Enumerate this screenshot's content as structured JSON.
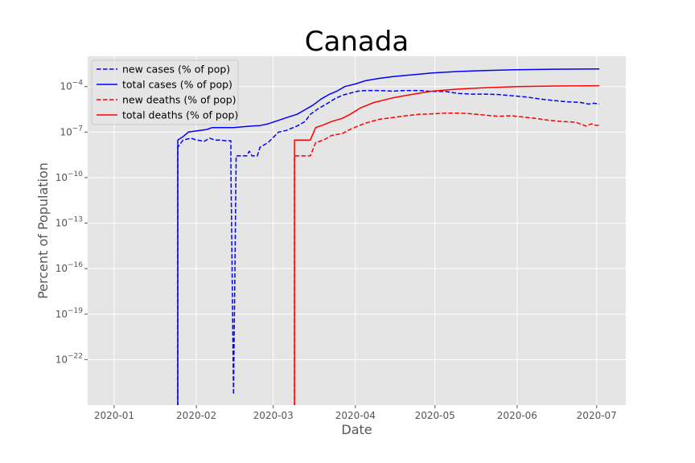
{
  "chart_data": {
    "type": "line",
    "title": "Canada",
    "xlabel": "Date",
    "ylabel": "Percent of Population",
    "yscale": "log",
    "ylim": [
      1e-25,
      0.01
    ],
    "xlim": [
      "2019-12-22",
      "2020-07-12"
    ],
    "grid": true,
    "legend_position": "top-left",
    "x_ticks": [
      "2020-01-01",
      "2020-02-01",
      "2020-03-01",
      "2020-04-01",
      "2020-05-01",
      "2020-06-01",
      "2020-07-01"
    ],
    "x_tick_labels": [
      "2020-01",
      "2020-02",
      "2020-03",
      "2020-04",
      "2020-05",
      "2020-06",
      "2020-07"
    ],
    "y_ticks": [
      1e-22,
      1e-19,
      1e-16,
      1e-13,
      1e-10,
      1e-07,
      0.0001
    ],
    "y_tick_labels": [
      {
        "base": "10",
        "exp": "−22"
      },
      {
        "base": "10",
        "exp": "−19"
      },
      {
        "base": "10",
        "exp": "−16"
      },
      {
        "base": "10",
        "exp": "−13"
      },
      {
        "base": "10",
        "exp": "−10"
      },
      {
        "base": "10",
        "exp": "−7"
      },
      {
        "base": "10",
        "exp": "−4"
      }
    ],
    "series": [
      {
        "name": "new cases (% of pop)",
        "color": "#0000ff",
        "dash": "dashed",
        "points": [
          [
            "2020-01-25",
            1e-26
          ],
          [
            "2020-01-25",
            1e-08
          ],
          [
            "2020-01-27",
            3e-08
          ],
          [
            "2020-01-30",
            4e-08
          ],
          [
            "2020-02-01",
            3e-08
          ],
          [
            "2020-02-04",
            2.5e-08
          ],
          [
            "2020-02-06",
            4e-08
          ],
          [
            "2020-02-08",
            3e-08
          ],
          [
            "2020-02-10",
            3e-08
          ],
          [
            "2020-02-12",
            2.7e-08
          ],
          [
            "2020-02-14",
            2.7e-08
          ],
          [
            "2020-02-14",
            1e-09
          ],
          [
            "2020-02-15",
            5e-25
          ],
          [
            "2020-02-16",
            2.7e-09
          ],
          [
            "2020-02-20",
            2.7e-09
          ],
          [
            "2020-02-21",
            5.5e-09
          ],
          [
            "2020-02-22",
            2.7e-09
          ],
          [
            "2020-02-24",
            2.7e-09
          ],
          [
            "2020-02-25",
            1e-08
          ],
          [
            "2020-02-28",
            2e-08
          ],
          [
            "2020-03-03",
            1e-07
          ],
          [
            "2020-03-06",
            1.3e-07
          ],
          [
            "2020-03-10",
            2.5e-07
          ],
          [
            "2020-03-13",
            5e-07
          ],
          [
            "2020-03-15",
            1.5e-06
          ],
          [
            "2020-03-18",
            3.5e-06
          ],
          [
            "2020-03-21",
            7e-06
          ],
          [
            "2020-03-24",
            1.5e-05
          ],
          [
            "2020-03-27",
            2.7e-05
          ],
          [
            "2020-03-30",
            3.7e-05
          ],
          [
            "2020-04-02",
            5e-05
          ],
          [
            "2020-04-05",
            5.5e-05
          ],
          [
            "2020-04-10",
            5.5e-05
          ],
          [
            "2020-04-15",
            5e-05
          ],
          [
            "2020-04-20",
            5.5e-05
          ],
          [
            "2020-04-25",
            5.5e-05
          ],
          [
            "2020-04-30",
            4.8e-05
          ],
          [
            "2020-05-05",
            4.8e-05
          ],
          [
            "2020-05-10",
            3.5e-05
          ],
          [
            "2020-05-15",
            3.2e-05
          ],
          [
            "2020-05-20",
            3.2e-05
          ],
          [
            "2020-05-25",
            3e-05
          ],
          [
            "2020-05-30",
            2.5e-05
          ],
          [
            "2020-06-05",
            2e-05
          ],
          [
            "2020-06-10",
            1.5e-05
          ],
          [
            "2020-06-15",
            1.2e-05
          ],
          [
            "2020-06-20",
            1e-05
          ],
          [
            "2020-06-25",
            9e-06
          ],
          [
            "2020-06-28",
            7e-06
          ],
          [
            "2020-06-30",
            8e-06
          ],
          [
            "2020-07-02",
            7e-06
          ]
        ]
      },
      {
        "name": "total cases (% of pop)",
        "color": "#0000ff",
        "dash": "solid",
        "points": [
          [
            "2020-01-25",
            1e-26
          ],
          [
            "2020-01-25",
            3e-08
          ],
          [
            "2020-01-27",
            5e-08
          ],
          [
            "2020-01-29",
            1e-07
          ],
          [
            "2020-02-01",
            1.2e-07
          ],
          [
            "2020-02-05",
            1.5e-07
          ],
          [
            "2020-02-07",
            2e-07
          ],
          [
            "2020-02-15",
            2e-07
          ],
          [
            "2020-02-18",
            2.2e-07
          ],
          [
            "2020-02-22",
            2.5e-07
          ],
          [
            "2020-02-25",
            2.7e-07
          ],
          [
            "2020-02-28",
            3.5e-07
          ],
          [
            "2020-03-03",
            6e-07
          ],
          [
            "2020-03-06",
            9e-07
          ],
          [
            "2020-03-10",
            1.5e-06
          ],
          [
            "2020-03-13",
            3e-06
          ],
          [
            "2020-03-16",
            6e-06
          ],
          [
            "2020-03-19",
            1.5e-05
          ],
          [
            "2020-03-22",
            3e-05
          ],
          [
            "2020-03-25",
            5e-05
          ],
          [
            "2020-03-28",
            0.0001
          ],
          [
            "2020-04-01",
            0.00015
          ],
          [
            "2020-04-05",
            0.00025
          ],
          [
            "2020-04-10",
            0.00035
          ],
          [
            "2020-04-15",
            0.00045
          ],
          [
            "2020-04-20",
            0.00055
          ],
          [
            "2020-04-30",
            0.0008
          ],
          [
            "2020-05-10",
            0.001
          ],
          [
            "2020-05-20",
            0.00115
          ],
          [
            "2020-06-01",
            0.0013
          ],
          [
            "2020-06-15",
            0.0014
          ],
          [
            "2020-07-02",
            0.00145
          ]
        ]
      },
      {
        "name": "new deaths (% of pop)",
        "color": "#ff0000",
        "dash": "dashed",
        "points": [
          [
            "2020-03-09",
            1e-26
          ],
          [
            "2020-03-09",
            2.7e-09
          ],
          [
            "2020-03-15",
            2.7e-09
          ],
          [
            "2020-03-17",
            2e-08
          ],
          [
            "2020-03-20",
            3e-08
          ],
          [
            "2020-03-23",
            6e-08
          ],
          [
            "2020-03-27",
            8e-08
          ],
          [
            "2020-03-30",
            1.5e-07
          ],
          [
            "2020-04-02",
            2.5e-07
          ],
          [
            "2020-04-05",
            4e-07
          ],
          [
            "2020-04-10",
            7e-07
          ],
          [
            "2020-04-15",
            9e-07
          ],
          [
            "2020-04-20",
            1.2e-06
          ],
          [
            "2020-04-25",
            1.5e-06
          ],
          [
            "2020-04-30",
            1.6e-06
          ],
          [
            "2020-05-05",
            1.8e-06
          ],
          [
            "2020-05-10",
            1.8e-06
          ],
          [
            "2020-05-15",
            1.6e-06
          ],
          [
            "2020-05-20",
            1.3e-06
          ],
          [
            "2020-05-25",
            1.1e-06
          ],
          [
            "2020-05-30",
            1.2e-06
          ],
          [
            "2020-06-03",
            1e-06
          ],
          [
            "2020-06-08",
            8e-07
          ],
          [
            "2020-06-13",
            6e-07
          ],
          [
            "2020-06-18",
            5e-07
          ],
          [
            "2020-06-23",
            4.5e-07
          ],
          [
            "2020-06-27",
            2.5e-07
          ],
          [
            "2020-06-29",
            3.5e-07
          ],
          [
            "2020-07-01",
            2.7e-07
          ],
          [
            "2020-07-02",
            3e-07
          ]
        ]
      },
      {
        "name": "total deaths (% of pop)",
        "color": "#ff0000",
        "dash": "solid",
        "points": [
          [
            "2020-03-09",
            1e-26
          ],
          [
            "2020-03-09",
            3e-08
          ],
          [
            "2020-03-15",
            3e-08
          ],
          [
            "2020-03-17",
            2e-07
          ],
          [
            "2020-03-20",
            3e-07
          ],
          [
            "2020-03-23",
            5e-07
          ],
          [
            "2020-03-27",
            8e-07
          ],
          [
            "2020-03-30",
            1.5e-06
          ],
          [
            "2020-04-03",
            4e-06
          ],
          [
            "2020-04-08",
            9e-06
          ],
          [
            "2020-04-15",
            1.8e-05
          ],
          [
            "2020-04-22",
            3e-05
          ],
          [
            "2020-04-30",
            5e-05
          ],
          [
            "2020-05-10",
            7e-05
          ],
          [
            "2020-05-20",
            8.5e-05
          ],
          [
            "2020-06-01",
            0.0001
          ],
          [
            "2020-06-15",
            0.00011
          ],
          [
            "2020-07-02",
            0.000115
          ]
        ]
      }
    ]
  }
}
